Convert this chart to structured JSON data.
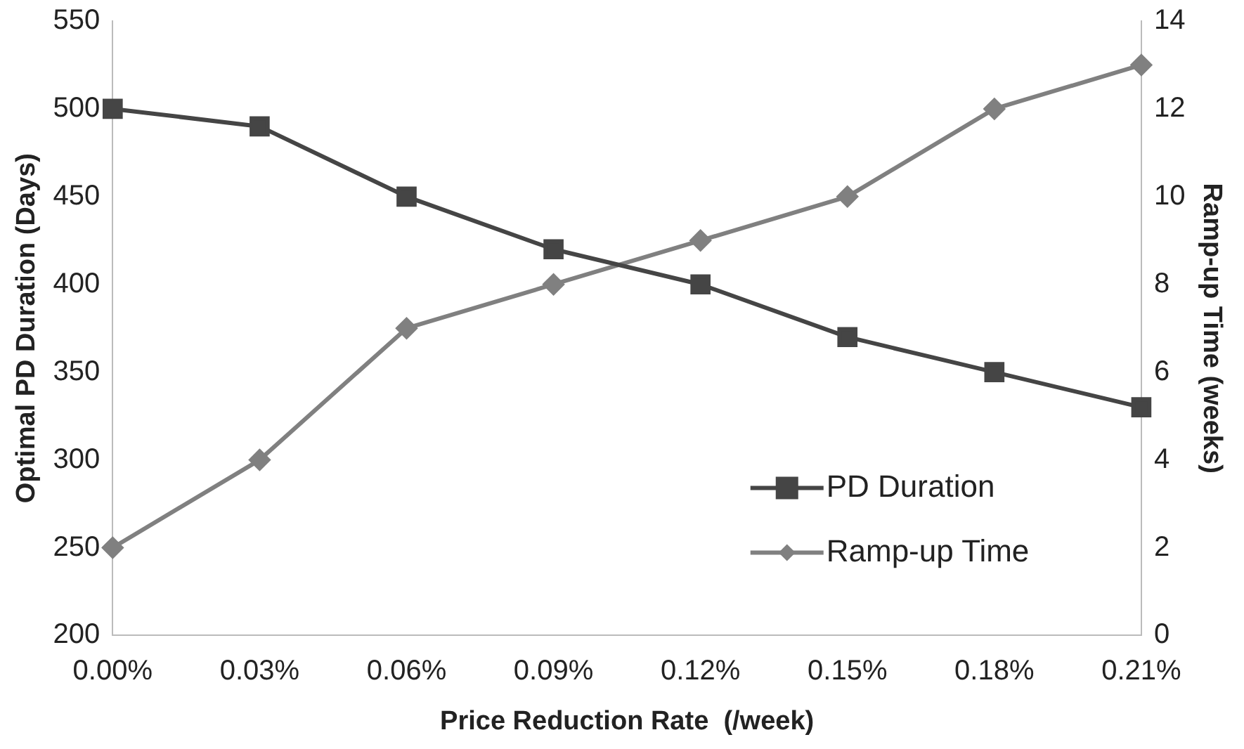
{
  "chart_data": {
    "type": "line",
    "xlabel": "Price Reduction Rate  (/week)",
    "ylabel": "Optimal PD Duration (Days)",
    "y2label": "Ramp-up Time (weeks)",
    "categories": [
      "0.00%",
      "0.03%",
      "0.06%",
      "0.09%",
      "0.12%",
      "0.15%",
      "0.18%",
      "0.21%"
    ],
    "series": [
      {
        "name": "PD Duration",
        "color": "#454545",
        "marker": "square",
        "values": [
          500,
          490,
          450,
          420,
          400,
          370,
          350,
          330
        ]
      },
      {
        "name": "Ramp-up Time",
        "color": "#808080",
        "marker": "diamond",
        "axis": "y2",
        "values": [
          2,
          4,
          7,
          8,
          9,
          10,
          12,
          13
        ]
      }
    ],
    "ylim": [
      200,
      550
    ],
    "yticks": [
      200,
      250,
      300,
      350,
      400,
      450,
      500,
      550
    ],
    "y2lim": [
      0,
      14
    ],
    "y2ticks": [
      0,
      2,
      4,
      6,
      8,
      10,
      12,
      14
    ],
    "grid": false,
    "legend": "bottom right",
    "line_style": "solid"
  }
}
